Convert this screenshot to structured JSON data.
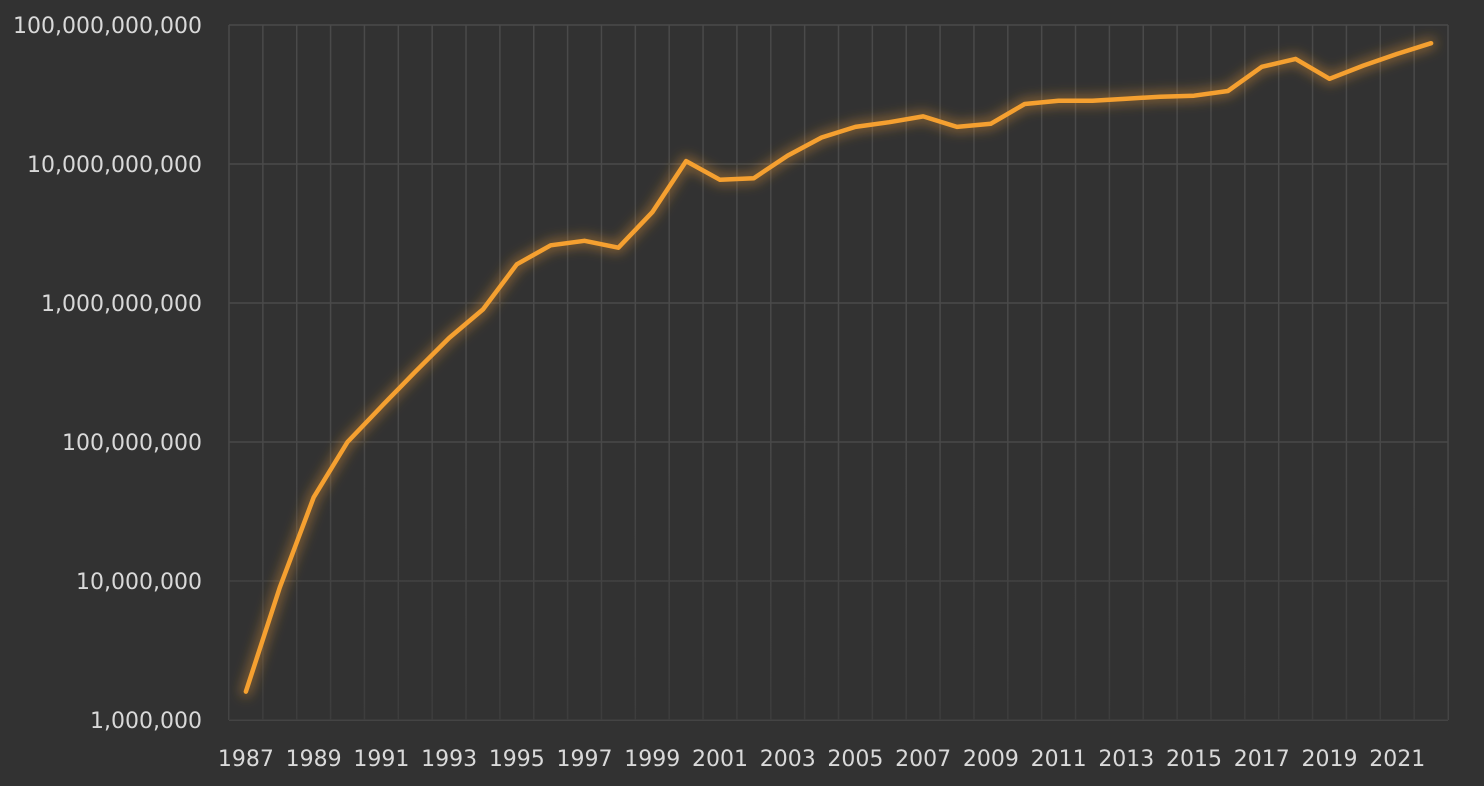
{
  "chart_data": {
    "type": "line",
    "title": "",
    "xlabel": "",
    "ylabel": "",
    "y_scale": "log",
    "ylim": [
      1000000,
      100000000000
    ],
    "y_ticks": [
      1000000,
      10000000,
      100000000,
      1000000000,
      10000000000,
      100000000000
    ],
    "y_tick_labels": [
      "1,000,000",
      "10,000,000",
      "100,000,000",
      "1,000,000,000",
      "10,000,000,000",
      "100,000,000,000"
    ],
    "x": [
      1987,
      1988,
      1989,
      1990,
      1991,
      1992,
      1993,
      1994,
      1995,
      1996,
      1997,
      1998,
      1999,
      2000,
      2001,
      2002,
      2003,
      2004,
      2005,
      2006,
      2007,
      2008,
      2009,
      2010,
      2011,
      2012,
      2013,
      2014,
      2015,
      2016,
      2017,
      2018,
      2019,
      2020,
      2021,
      2022
    ],
    "x_tick_labels": [
      "1987",
      "1989",
      "1991",
      "1993",
      "1995",
      "1997",
      "1999",
      "2001",
      "2003",
      "2005",
      "2007",
      "2009",
      "2011",
      "2013",
      "2015",
      "2017",
      "2019",
      "2021"
    ],
    "grid": true,
    "legend": "none",
    "series": [
      {
        "color": "#f5a030",
        "values": [
          1600000,
          9000000,
          40000000,
          100000000,
          180000000,
          320000000,
          560000000,
          900000000,
          1900000000,
          2600000000,
          2800000000,
          2500000000,
          4500000000,
          10500000000,
          7700000000,
          7900000000,
          11500000000,
          15500000000,
          18500000000,
          20000000000,
          22000000000,
          18500000000,
          19500000000,
          27000000000,
          28500000000,
          28500000000,
          29500000000,
          30500000000,
          31000000000,
          33500000000,
          50000000000,
          57000000000,
          41000000000,
          51000000000,
          62000000000,
          74000000000
        ]
      }
    ]
  },
  "style": {
    "background": "#323232",
    "grid_color": "#4a4a4a",
    "label_color": "#d9d9d9",
    "line_color": "#f5a030",
    "glow_color": "#f5a030"
  }
}
